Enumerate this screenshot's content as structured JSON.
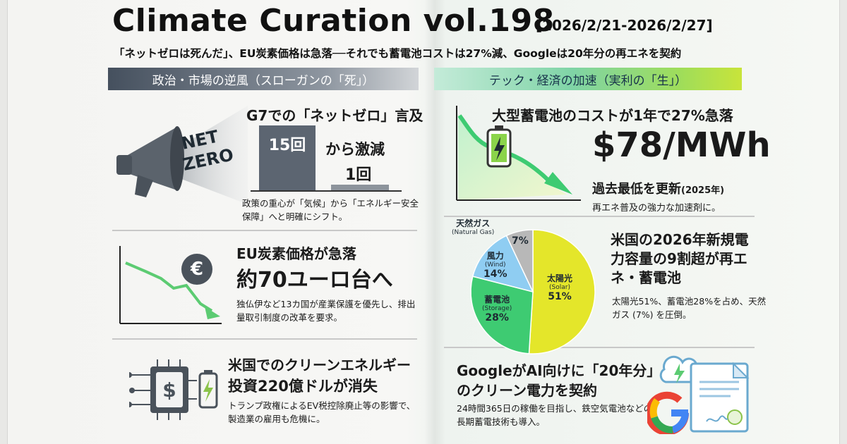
{
  "header": {
    "title": "Climate Curation vol.198",
    "date_range": "[2026/2/21-2026/2/27]",
    "subtitle": "「ネットゼロは死んだ」、EU炭素価格は急落──それでも蓄電池コストは27%減、Googleは20年分の再エネを契約"
  },
  "bands": {
    "left": "政治・市場の逆風（スローガンの「死」）",
    "right": "テック・経済の加速（実利の「生」）"
  },
  "left": {
    "s1": {
      "icon_text_1": "NET",
      "icon_text_2": "ZERO",
      "title": "G7での「ネットゼロ」言及",
      "bar_before": "15回",
      "from_drop": "から激減",
      "bar_after": "1回",
      "note": "政策の重心が「気候」から「エネルギー安全保障」へと明確にシフト。"
    },
    "s2": {
      "euro_symbol": "€",
      "title": "EU炭素価格が急落",
      "big": "約70ユーロ台へ",
      "note": "独仏伊など13カ国が産業保護を優先し、排出量取引制度の改革を要求。"
    },
    "s3": {
      "title_1": "米国でのクリーンエネルギー",
      "title_2": "投資220億ドルが消失",
      "note": "トランプ政権によるEV税控除廃止等の影響で、製造業の雇用も危機に。"
    }
  },
  "right": {
    "r1": {
      "title": "大型蓄電池のコストが1年で27%急落",
      "price": "$78/MWh",
      "sub": "過去最低を更新",
      "sub_year": "(2025年)",
      "note": "再エネ普及の強力な加速剤に。"
    },
    "r2": {
      "title": "米国の2026年新規電力容量の9割超が再エネ・蓄電池",
      "note": "太陽光51%、蓄電池28%を占め、天然ガス (7%) を圧倒。"
    },
    "r3": {
      "title": "GoogleがAI向けに「20年分」のクリーン電力を契約",
      "note": "24時間365日の稼働を目指し、鉄空気電池などの長期蓄電技術も導入。"
    }
  },
  "chart_data": {
    "type": "pie",
    "categories": [
      "太陽光 (Solar)",
      "蓄電池 (Storage)",
      "風力 (Wind)",
      "天然ガス (Natural Gas)"
    ],
    "values": [
      51,
      28,
      14,
      7
    ],
    "labels": {
      "solar_jp": "太陽光",
      "solar_en": "(Solar)",
      "solar_pct": "51%",
      "storage_jp": "蓄電池",
      "storage_en": "(Storage)",
      "storage_pct": "28%",
      "wind_jp": "風力",
      "wind_en": "(Wind)",
      "wind_pct": "14%",
      "gas_jp": "天然ガス",
      "gas_en": "(Natural Gas)",
      "gas_pct": "7%"
    },
    "colors": [
      "#e4e62a",
      "#3ecb72",
      "#8fcdf2",
      "#b8b8b8"
    ]
  },
  "colors": {
    "band_left": "#45505e",
    "band_right": "#9fdd5a",
    "decline_arrow": "#5ccb72",
    "chip": "#4a525b"
  }
}
